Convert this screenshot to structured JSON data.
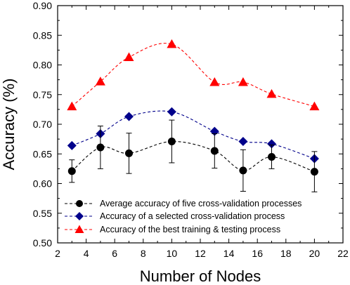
{
  "chart_data": {
    "type": "line",
    "xlabel": "Number of Nodes",
    "ylabel": "Accuracy (%)",
    "xlim": [
      2,
      22
    ],
    "ylim": [
      0.5,
      0.9
    ],
    "x_ticks": [
      "2",
      "4",
      "6",
      "8",
      "10",
      "12",
      "14",
      "16",
      "18",
      "20",
      "22"
    ],
    "y_ticks": [
      "0.50",
      "0.55",
      "0.60",
      "0.65",
      "0.70",
      "0.75",
      "0.80",
      "0.85",
      "0.90"
    ],
    "grid": false,
    "legend_position": "bottom-left",
    "x": [
      3,
      5,
      7,
      10,
      13,
      15,
      17,
      20
    ],
    "series": [
      {
        "name": "Average accuracy of five cross-validation processes",
        "marker": "circle",
        "color": "#000000",
        "values": [
          0.621,
          0.661,
          0.651,
          0.671,
          0.655,
          0.622,
          0.645,
          0.62
        ],
        "error": [
          0.019,
          0.036,
          0.034,
          0.036,
          0.029,
          0.035,
          0.02,
          0.034
        ]
      },
      {
        "name": "Accuracy of a selected cross-validation process",
        "marker": "diamond",
        "color": "#00008b",
        "values": [
          0.664,
          0.684,
          0.713,
          0.721,
          0.688,
          0.671,
          0.667,
          0.642
        ]
      },
      {
        "name": "Accuracy of the best training & testing process",
        "marker": "triangle",
        "color": "#ff0000",
        "values": [
          0.73,
          0.772,
          0.813,
          0.835,
          0.771,
          0.771,
          0.751,
          0.73
        ]
      }
    ]
  }
}
